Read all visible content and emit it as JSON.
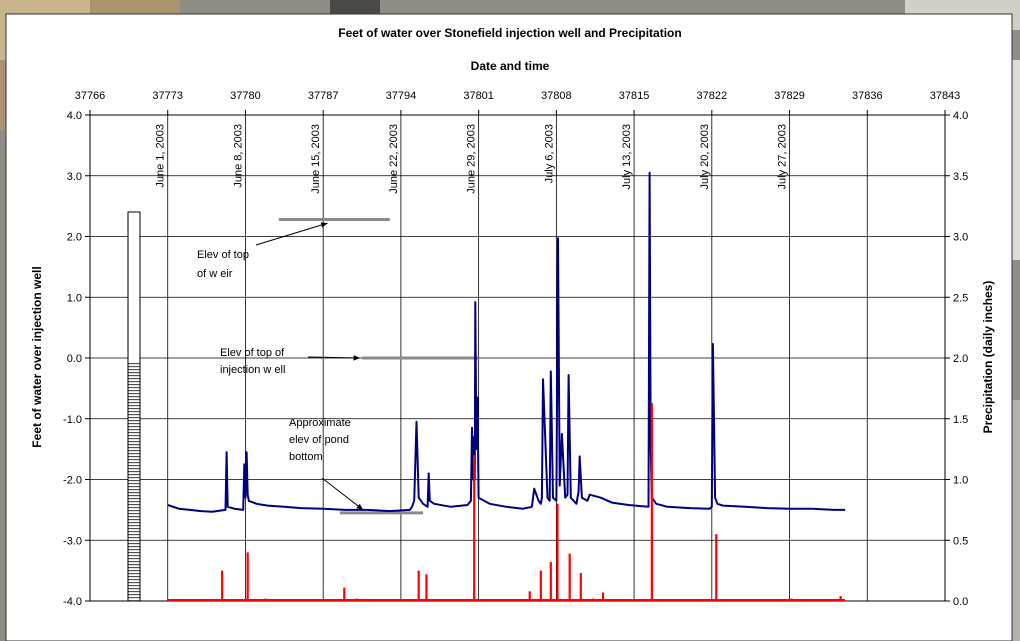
{
  "chart_data": {
    "type": "line",
    "title": "Feet of water over Stonefield injection well and Precipitation",
    "xlabel": "Date and time",
    "ylabel": "Feet of water over injection well",
    "y2label": "Precipitation (daily inches)",
    "xlim": [
      37766,
      37843
    ],
    "ylim": [
      -4.0,
      4.0
    ],
    "y2lim": [
      0.0,
      4.0
    ],
    "grid": true,
    "x_ticks": [
      37766,
      37773,
      37780,
      37787,
      37794,
      37801,
      37808,
      37815,
      37822,
      37829,
      37836,
      37843
    ],
    "y_ticks": [
      {
        "value": 4.0,
        "label": "4.0"
      },
      {
        "value": 3.0,
        "label": "3.0"
      },
      {
        "value": 2.0,
        "label": "2.0"
      },
      {
        "value": 1.0,
        "label": "1.0"
      },
      {
        "value": 0.0,
        "label": "0.0"
      },
      {
        "value": -1.0,
        "label": "-1.0"
      },
      {
        "value": -2.0,
        "label": "-2.0"
      },
      {
        "value": -3.0,
        "label": "-3.0"
      },
      {
        "value": -4.0,
        "label": "-4.0"
      }
    ],
    "y2_ticks": [
      {
        "value": 4.0,
        "label": "4.0"
      },
      {
        "value": 3.5,
        "label": "3.5"
      },
      {
        "value": 3.0,
        "label": "3.0"
      },
      {
        "value": 2.5,
        "label": "2.5"
      },
      {
        "value": 2.0,
        "label": "2.0"
      },
      {
        "value": 1.5,
        "label": "1.5"
      },
      {
        "value": 1.0,
        "label": "1.0"
      },
      {
        "value": 0.5,
        "label": "0.5"
      },
      {
        "value": 0.0,
        "label": "0.0"
      }
    ],
    "date_labels": [
      {
        "x": 37773,
        "text": "June 1, 2003"
      },
      {
        "x": 37780,
        "text": "June 8, 2003"
      },
      {
        "x": 37787,
        "text": "June 15, 2003"
      },
      {
        "x": 37794,
        "text": "June 22, 2003"
      },
      {
        "x": 37801,
        "text": "June 29, 2003"
      },
      {
        "x": 37808,
        "text": "July 6, 2003"
      },
      {
        "x": 37815,
        "text": "July 13, 2003"
      },
      {
        "x": 37822,
        "text": "July 20, 2003"
      },
      {
        "x": 37829,
        "text": "July 27, 2003"
      }
    ],
    "series": [
      {
        "color": "#00007f",
        "x": [
          37773.0,
          37774.0,
          37775.0,
          37776.0,
          37777.0,
          37778.2,
          37778.3,
          37778.4,
          37779.0,
          37779.8,
          37779.9,
          37780.0,
          37780.1,
          37780.2,
          37780.3,
          37781.0,
          37782.0,
          37783.5,
          37785.0,
          37787.0,
          37789.0,
          37791.0,
          37793.0,
          37794.8,
          37795.0,
          37795.2,
          37795.4,
          37795.6,
          37796.0,
          37796.4,
          37796.5,
          37796.6,
          37797.0,
          37798.5,
          37800.0,
          37800.3,
          37800.4,
          37800.5,
          37800.6,
          37800.65,
          37800.7,
          37800.8,
          37800.85,
          37800.9,
          37801.0,
          37802.0,
          37803.5,
          37805.0,
          37805.8,
          37806.0,
          37806.4,
          37806.6,
          37806.7,
          37806.8,
          37807.2,
          37807.4,
          37807.5,
          37807.7,
          37808.0,
          37808.15,
          37808.3,
          37808.5,
          37808.8,
          37809.0,
          37809.1,
          37809.3,
          37809.8,
          37810.0,
          37810.1,
          37810.3,
          37810.8,
          37811.0,
          37812.0,
          37813.0,
          37814.5,
          37816.3,
          37816.4,
          37816.5,
          37816.6,
          37817.0,
          37818.0,
          37820.0,
          37821.8,
          37822.0,
          37822.1,
          37822.3,
          37822.5,
          37823.0,
          37825.0,
          37827.0,
          37829.0,
          37831.0,
          37833.0,
          37834.0
        ],
        "values": [
          -2.42,
          -2.48,
          -2.5,
          -2.52,
          -2.53,
          -2.5,
          -1.55,
          -2.45,
          -2.48,
          -2.5,
          -1.75,
          -2.3,
          -1.55,
          -2.25,
          -2.35,
          -2.4,
          -2.43,
          -2.45,
          -2.47,
          -2.48,
          -2.5,
          -2.5,
          -2.52,
          -2.5,
          -2.45,
          -2.35,
          -1.05,
          -2.3,
          -2.4,
          -2.45,
          -1.9,
          -2.35,
          -2.4,
          -2.45,
          -2.42,
          -2.35,
          -1.15,
          -2.0,
          -1.3,
          -2.0,
          0.92,
          -1.5,
          -0.95,
          -0.65,
          -2.3,
          -2.4,
          -2.45,
          -2.48,
          -2.45,
          -2.15,
          -2.35,
          -2.4,
          -2.3,
          -0.35,
          -2.3,
          -2.35,
          -0.22,
          -2.3,
          -2.35,
          1.97,
          -2.1,
          -1.25,
          -2.3,
          -2.25,
          -0.28,
          -2.3,
          -2.4,
          -2.2,
          -1.62,
          -2.3,
          -2.35,
          -2.25,
          -2.3,
          -2.38,
          -2.42,
          -2.45,
          3.05,
          -1.5,
          -2.3,
          -2.4,
          -2.45,
          -2.47,
          -2.48,
          -2.45,
          0.23,
          -2.3,
          -2.4,
          -2.43,
          -2.45,
          -2.47,
          -2.48,
          -2.48,
          -2.5,
          -2.5
        ]
      },
      {
        "color": "#ff0000",
        "axis": "right",
        "x": [
          37777.9,
          37780.2,
          37781.8,
          37788.9,
          37790.0,
          37795.6,
          37796.3,
          37800.6,
          37805.6,
          37806.6,
          37807.5,
          37808.1,
          37809.2,
          37810.2,
          37811.3,
          37812.2,
          37816.6,
          37822.4,
          37829.2,
          37833.6
        ],
        "values": [
          0.25,
          0.4,
          0.02,
          0.11,
          0.02,
          0.25,
          0.22,
          1.2,
          0.08,
          0.25,
          0.32,
          0.8,
          0.39,
          0.23,
          0.02,
          0.07,
          1.63,
          0.55,
          0.02,
          0.04
        ]
      }
    ],
    "reference_lines": [
      {
        "label": "Elev of top of weir",
        "value": 2.28,
        "x_start": 37783.0,
        "x_end": 37793.0
      },
      {
        "label": "Elev of top of injection well",
        "value": 0.0,
        "x_start": 37790.5,
        "x_end": 37801.0
      },
      {
        "label": "Approximate elev of pond bottom",
        "value": -2.55,
        "x_start": 37788.5,
        "x_end": 37796.0
      }
    ],
    "annotations": [
      {
        "lines": [
          "Elev of top",
          "of w eir"
        ]
      },
      {
        "lines": [
          "Elev of top of",
          "injection w ell"
        ]
      },
      {
        "lines": [
          "Approximate",
          "elev of pond",
          "bottom"
        ]
      }
    ],
    "gauge_fill": 0.61
  }
}
